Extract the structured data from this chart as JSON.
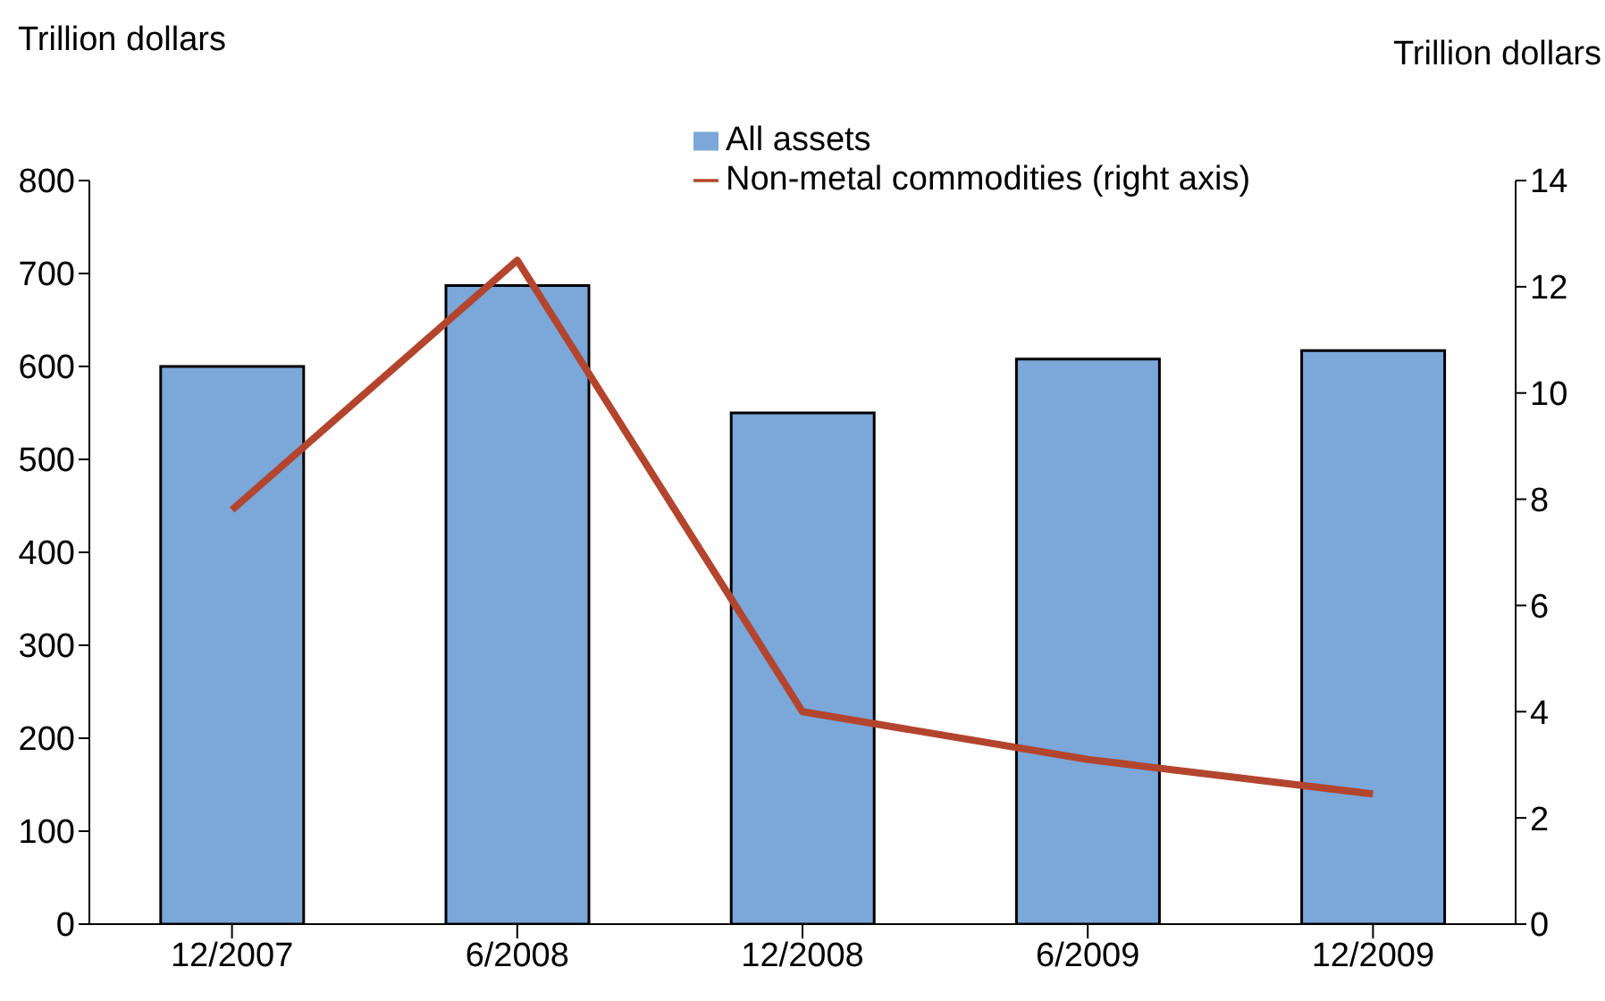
{
  "chart_data": {
    "type": "bar",
    "ylabel": "Trillion dollars",
    "y2label": "Trillion dollars",
    "categories": [
      "12/2007",
      "6/2008",
      "12/2008",
      "6/2009",
      "12/2009"
    ],
    "series": [
      {
        "name": "All assets",
        "color": "#7ba7d9",
        "values": [
          600,
          687,
          550,
          608,
          617
        ]
      },
      {
        "name": "Non-metal commodities (right axis)",
        "type": "line",
        "axis": "y2",
        "color": "#b3452f",
        "values": [
          7.8,
          12.5,
          4.0,
          3.1,
          2.45
        ]
      }
    ],
    "ylim": [
      0,
      800
    ],
    "yticks": [
      0,
      100,
      200,
      300,
      400,
      500,
      600,
      700,
      800
    ],
    "y2lim": [
      0,
      14
    ],
    "y2ticks": [
      0,
      2,
      4,
      6,
      8,
      10,
      12,
      14
    ],
    "legend": "top",
    "marker": "none"
  }
}
